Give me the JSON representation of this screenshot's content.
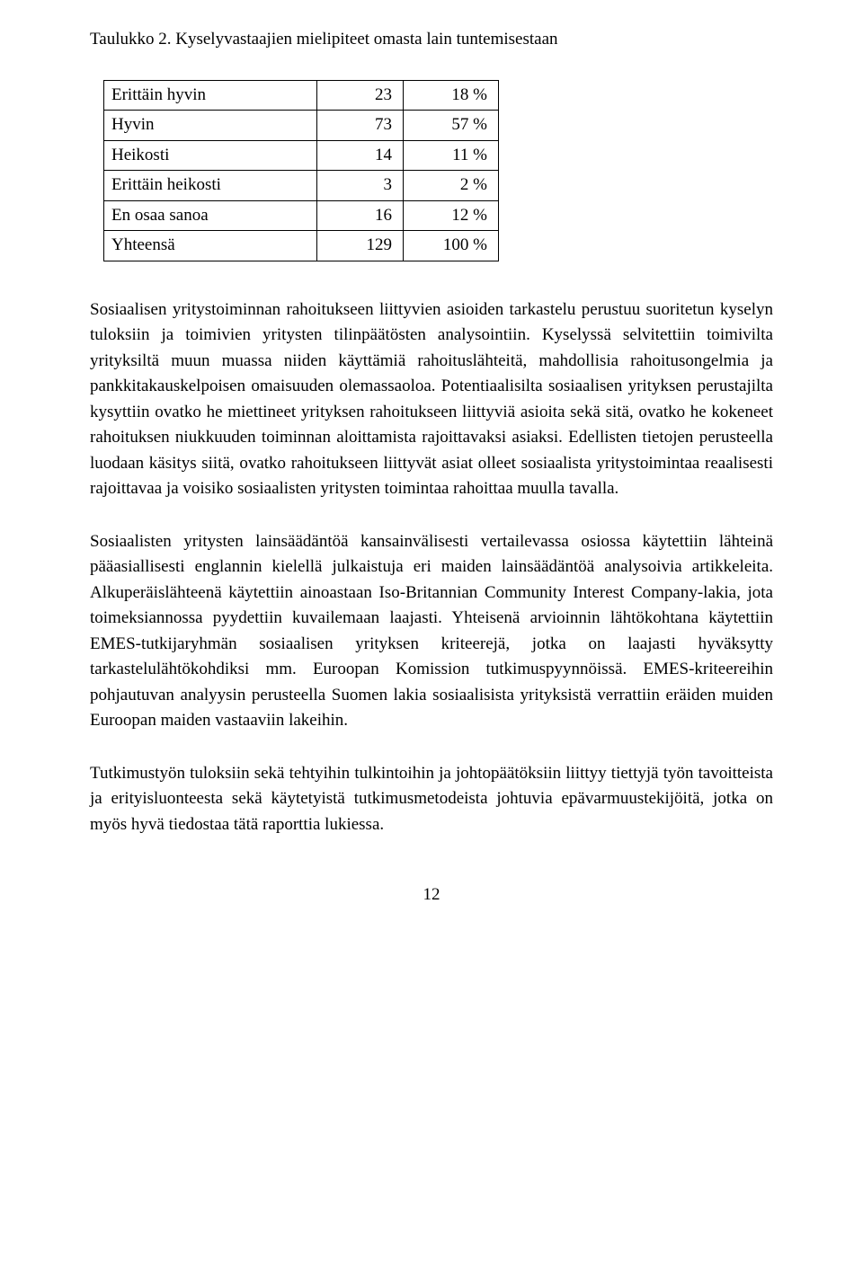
{
  "caption": "Taulukko 2. Kyselyvastaajien mielipiteet omasta lain tuntemisestaan",
  "table": {
    "rows": [
      {
        "label": "Erittäin hyvin",
        "count": "23",
        "pct": "18 %"
      },
      {
        "label": "Hyvin",
        "count": "73",
        "pct": "57 %"
      },
      {
        "label": "Heikosti",
        "count": "14",
        "pct": "11 %"
      },
      {
        "label": "Erittäin heikosti",
        "count": "3",
        "pct": "2 %"
      },
      {
        "label": "En osaa sanoa",
        "count": "16",
        "pct": "12 %"
      },
      {
        "label": "Yhteensä",
        "count": "129",
        "pct": "100 %"
      }
    ]
  },
  "paragraphs": {
    "p1": "Sosiaalisen yritystoiminnan rahoitukseen liittyvien asioiden tarkastelu perustuu suoritetun kyselyn tuloksiin ja toimivien yritysten tilinpäätösten analysointiin. Kyselyssä selvitettiin toimivilta yrityksiltä muun muassa niiden käyttämiä rahoituslähteitä, mahdollisia rahoitusongelmia ja pankkitakauskelpoisen omaisuuden olemassaoloa. Potentiaalisilta sosiaalisen yrityksen perustajilta kysyttiin ovatko he miettineet yrityksen rahoitukseen liittyviä asioita sekä sitä, ovatko he kokeneet rahoituksen niukkuuden toiminnan aloittamista rajoittavaksi asiaksi. Edellisten tietojen perusteella luodaan käsitys siitä, ovatko rahoitukseen liittyvät asiat olleet sosiaalista yritystoimintaa reaalisesti rajoittavaa ja voisiko sosiaalisten yritysten toimintaa rahoittaa muulla tavalla.",
    "p2": "Sosiaalisten yritysten lainsäädäntöä kansainvälisesti vertailevassa osiossa käytettiin lähteinä pääasiallisesti englannin kielellä julkaistuja eri maiden lainsäädäntöä analysoivia artikkeleita. Alkuperäislähteenä käytettiin ainoastaan Iso-Britannian Community Interest Company-lakia, jota toimeksiannossa pyydettiin kuvailemaan laajasti. Yhteisenä arvioinnin lähtökohtana käytettiin EMES-tutkijaryhmän sosiaalisen yrityksen kriteerejä, jotka on laajasti hyväksytty tarkastelulähtökohdiksi mm. Euroopan Komission tutkimuspyynnöissä. EMES-kriteereihin pohjautuvan analyysin perusteella Suomen lakia sosiaalisista yrityksistä verrattiin eräiden muiden Euroopan maiden vastaaviin lakeihin.",
    "p3": "Tutkimustyön tuloksiin sekä tehtyihin tulkintoihin ja johtopäätöksiin liittyy tiettyjä työn tavoitteista ja erityisluonteesta sekä käytetyistä tutkimusmetodeista johtuvia epävarmuustekijöitä, jotka on myös hyvä tiedostaa tätä raporttia lukiessa."
  },
  "pageNumber": "12"
}
